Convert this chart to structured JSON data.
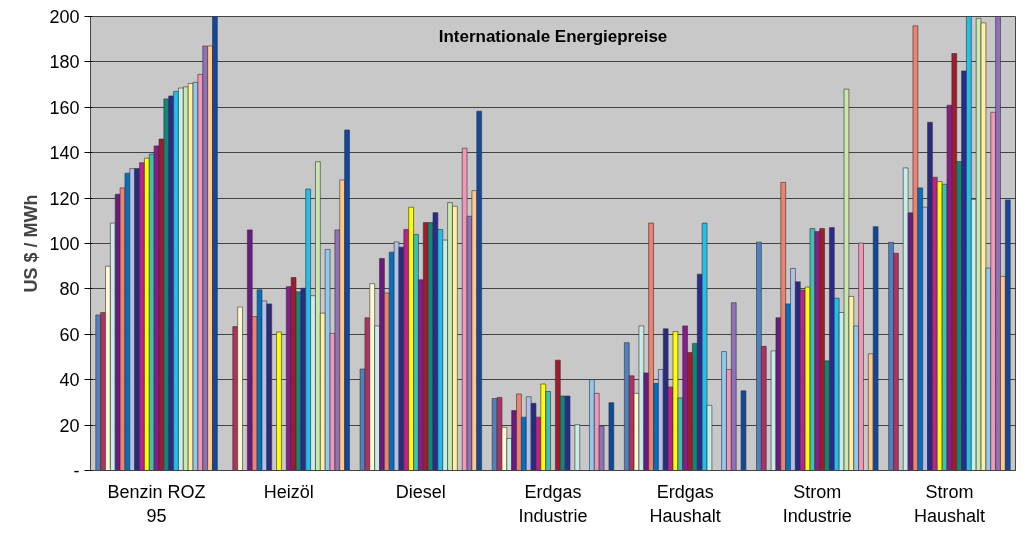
{
  "chart_data": {
    "type": "bar",
    "title": "Internationale Energiepreise",
    "ylabel": "US $ / MWh",
    "categories": [
      "Benzin ROZ\n95",
      "Heizöl",
      "Diesel",
      "Erdgas\nIndustrie",
      "Erdgas\nHaushalt",
      "Strom\nIndustrie",
      "Strom\nHaushalt"
    ],
    "ylim": [
      0,
      200
    ],
    "yticks": [
      {
        "value": 0,
        "label": "-"
      },
      20,
      40,
      60,
      80,
      100,
      120,
      140,
      160,
      180,
      200
    ],
    "grid": "y",
    "series": [
      {
        "color": "#4f81c0",
        "values": [
          68.5,
          null,
          44.7,
          31.7,
          56.3,
          100.6,
          100.5
        ]
      },
      {
        "color": "#b03060",
        "values": [
          69.6,
          63.4,
          67.3,
          32.2,
          41.7,
          54.7,
          95.7
        ]
      },
      {
        "color": "#fff8d0",
        "values": [
          90,
          72,
          82.3,
          19,
          34,
          null,
          null
        ]
      },
      {
        "color": "#c8ece8",
        "values": [
          109,
          null,
          63.7,
          14.1,
          63.7,
          52.7,
          133.3
        ]
      },
      {
        "color": "#6a1a80",
        "values": [
          121.7,
          106,
          93.4,
          26.4,
          43,
          67.3,
          113.5
        ]
      },
      {
        "color": "#f08070",
        "values": [
          124.5,
          67.8,
          78.2,
          33.7,
          109,
          126.9,
          195.9
        ]
      },
      {
        "color": "#0070c0",
        "values": [
          131,
          79.6,
          96.2,
          23.5,
          38.4,
          73.4,
          124.5
        ]
      },
      {
        "color": "#b0c0e8",
        "values": [
          133,
          74.7,
          100.7,
          32.5,
          44.5,
          89,
          116
        ]
      },
      {
        "color": "#2a2a80",
        "values": [
          133,
          73.4,
          98.4,
          29.6,
          62.4,
          83.1,
          153.4
        ]
      },
      {
        "color": "#c0208a",
        "values": [
          135.6,
          null,
          106.2,
          23.5,
          36.8,
          79.5,
          129.2
        ]
      },
      {
        "color": "#ffff00",
        "values": [
          137.6,
          61,
          116,
          38.1,
          61.2,
          80.8,
          127.3
        ]
      },
      {
        "color": "#40c0b0",
        "values": [
          139.4,
          null,
          104,
          34.8,
          32,
          106.6,
          126.1
        ]
      },
      {
        "color": "#8b1a8b",
        "values": [
          143,
          81,
          84,
          null,
          63.7,
          105.3,
          160.9
        ]
      },
      {
        "color": "#a01c2c",
        "values": [
          146,
          85,
          109.2,
          48.6,
          52,
          106.6,
          183.7
        ]
      },
      {
        "color": "#108878",
        "values": [
          163.7,
          78.7,
          109.2,
          32.8,
          56,
          48.3,
          136.1
        ]
      },
      {
        "color": "#2a2a90",
        "values": [
          165,
          80.3,
          113.6,
          32.8,
          86.5,
          107,
          176
        ]
      },
      {
        "color": "#20c0e8",
        "values": [
          167,
          124,
          106.2,
          null,
          109,
          75.9,
          200
        ]
      },
      {
        "color": "#c8ece8",
        "values": [
          168.5,
          77,
          101.5,
          20.2,
          28.7,
          69.6,
          119.4
        ]
      },
      {
        "color": "#c8e8b0",
        "values": [
          169,
          136,
          118,
          null,
          null,
          168,
          199.2
        ]
      },
      {
        "color": "#fff0a0",
        "values": [
          170.5,
          69.3,
          116.4,
          null,
          null,
          76.7,
          197.2
        ]
      },
      {
        "color": "#90c8f0",
        "values": [
          171,
          97.4,
          null,
          40,
          52.4,
          63.7,
          89.2
        ]
      },
      {
        "color": "#f098b8",
        "values": [
          174.5,
          60.4,
          142,
          34,
          44.5,
          100.2,
          157.8
        ]
      },
      {
        "color": "#9070b8",
        "values": [
          187,
          106,
          112,
          19.5,
          73.9,
          null,
          200
        ]
      },
      {
        "color": "#ffc888",
        "values": [
          187,
          128,
          123.3,
          null,
          null,
          51.4,
          85.5
        ]
      },
      {
        "color": "#1048a0",
        "values": [
          200,
          150,
          158.3,
          29.9,
          35.1,
          107.4,
          119.2
        ]
      }
    ]
  }
}
